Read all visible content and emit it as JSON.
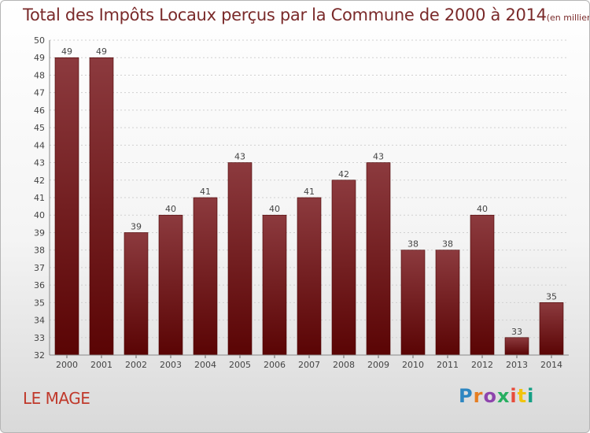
{
  "chart_data": {
    "type": "bar",
    "title": "Total des Impôts Locaux perçus par la Commune de 2000 à 2014",
    "subtitle": "(en milliers d'€)",
    "categories": [
      "2000",
      "2001",
      "2002",
      "2003",
      "2004",
      "2005",
      "2006",
      "2007",
      "2008",
      "2009",
      "2010",
      "2011",
      "2012",
      "2013",
      "2014"
    ],
    "values": [
      49,
      49,
      39,
      40,
      41,
      43,
      40,
      41,
      42,
      43,
      38,
      38,
      40,
      33,
      35
    ],
    "ylim": [
      32,
      50
    ],
    "yticks": [
      32,
      33,
      34,
      35,
      36,
      37,
      38,
      39,
      40,
      41,
      42,
      43,
      44,
      45,
      46,
      47,
      48,
      49,
      50
    ],
    "xlabel": "",
    "ylabel": "",
    "grid": true,
    "colors": {
      "bar_top": "#8c3a3e",
      "bar_bottom": "#5a0404",
      "title": "#7a2a2a",
      "label": "#444444"
    }
  },
  "footer": {
    "commune": "LE MAGE",
    "logo_letters": [
      "P",
      "r",
      "o",
      "x",
      "i",
      "t",
      "i"
    ]
  }
}
